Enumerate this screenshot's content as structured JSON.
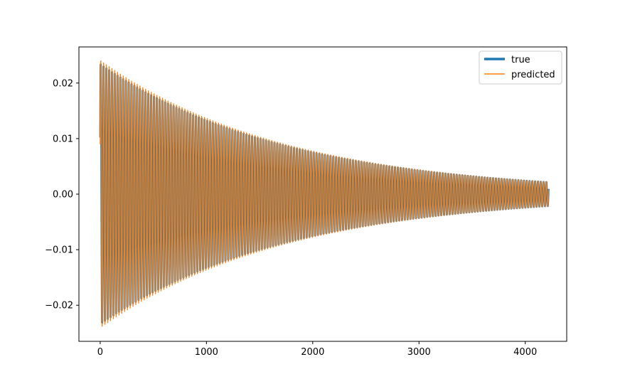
{
  "chart_data": {
    "type": "line",
    "title": "",
    "xlabel": "",
    "ylabel": "",
    "xlim": [
      -200,
      4390
    ],
    "ylim": [
      -0.0265,
      0.0265
    ],
    "x_ticks": [
      0,
      1000,
      2000,
      3000,
      4000
    ],
    "x_tick_labels": [
      "0",
      "1000",
      "2000",
      "3000",
      "4000"
    ],
    "y_ticks": [
      -0.02,
      -0.01,
      0.0,
      0.01,
      0.02
    ],
    "y_tick_labels": [
      "−0.02",
      "−0.01",
      "0.00",
      "0.01",
      "0.02"
    ],
    "grid": false,
    "legend": {
      "placement": "top-right",
      "entries": [
        "true",
        "predicted"
      ]
    },
    "signal": {
      "x_start": 0,
      "x_end": 4220,
      "initial_value": 0.0102,
      "peak_amplitude": 0.024,
      "final_amplitude": 0.0022,
      "oscillations": 160
    },
    "series": [
      {
        "name": "true",
        "color": "#1f77b4",
        "line_width": "thick"
      },
      {
        "name": "predicted",
        "color": "#ff7f0e",
        "line_width": "thin"
      }
    ]
  }
}
